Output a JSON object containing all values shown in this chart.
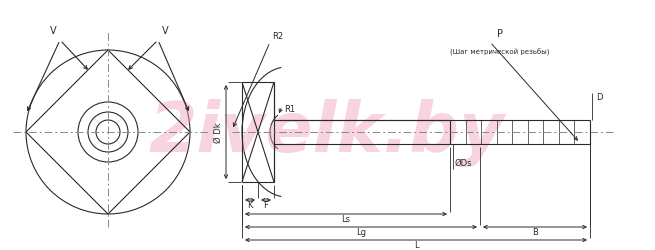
{
  "bg_color": "#ffffff",
  "line_color": "#2a2a2a",
  "dash_color": "#888888",
  "watermark_color": "#f0a0b8",
  "figsize": [
    6.55,
    2.51
  ],
  "dpi": 100,
  "annotations": {
    "V_left": "V",
    "V_right": "V",
    "R2": "R2",
    "Ds": "ØDs",
    "Dk": "Ø Dk",
    "R1": "R1",
    "P": "P",
    "P_sub": "(Шаг метрической резьбы)",
    "K": "K",
    "F": "F",
    "Ls": "Ls",
    "Lg": "Lg",
    "L": "L",
    "B": "B",
    "D": "D"
  }
}
